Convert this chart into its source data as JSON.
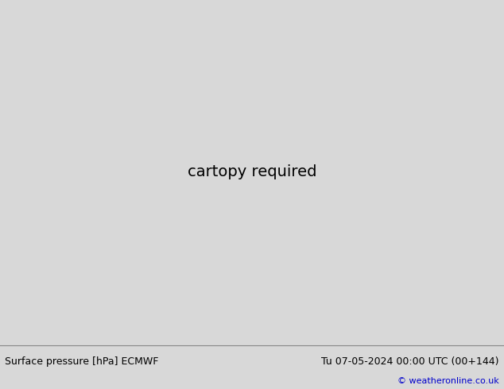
{
  "bottom_left_text": "Surface pressure [hPa] ECMWF",
  "bottom_right_text": "Tu 07-05-2024 00:00 UTC (00+144)",
  "copyright_text": "© weatheronline.co.uk",
  "bg_color": "#d8d8d8",
  "land_color": "#c8e0a0",
  "ocean_color": "#d8d8d8",
  "coast_color": "#888888",
  "border_color": "#a0a0a0",
  "fig_width": 6.34,
  "fig_height": 4.9,
  "dpi": 100,
  "bottom_text_color": "#000000",
  "copyright_color": "#0000cc",
  "bottom_bar_color": "#ffffff",
  "contour_blue_color": "#0000ff",
  "contour_red_color": "#ff0000",
  "contour_black_color": "#000000",
  "lon_min": -175,
  "lon_max": -50,
  "lat_min": 15,
  "lat_max": 80
}
